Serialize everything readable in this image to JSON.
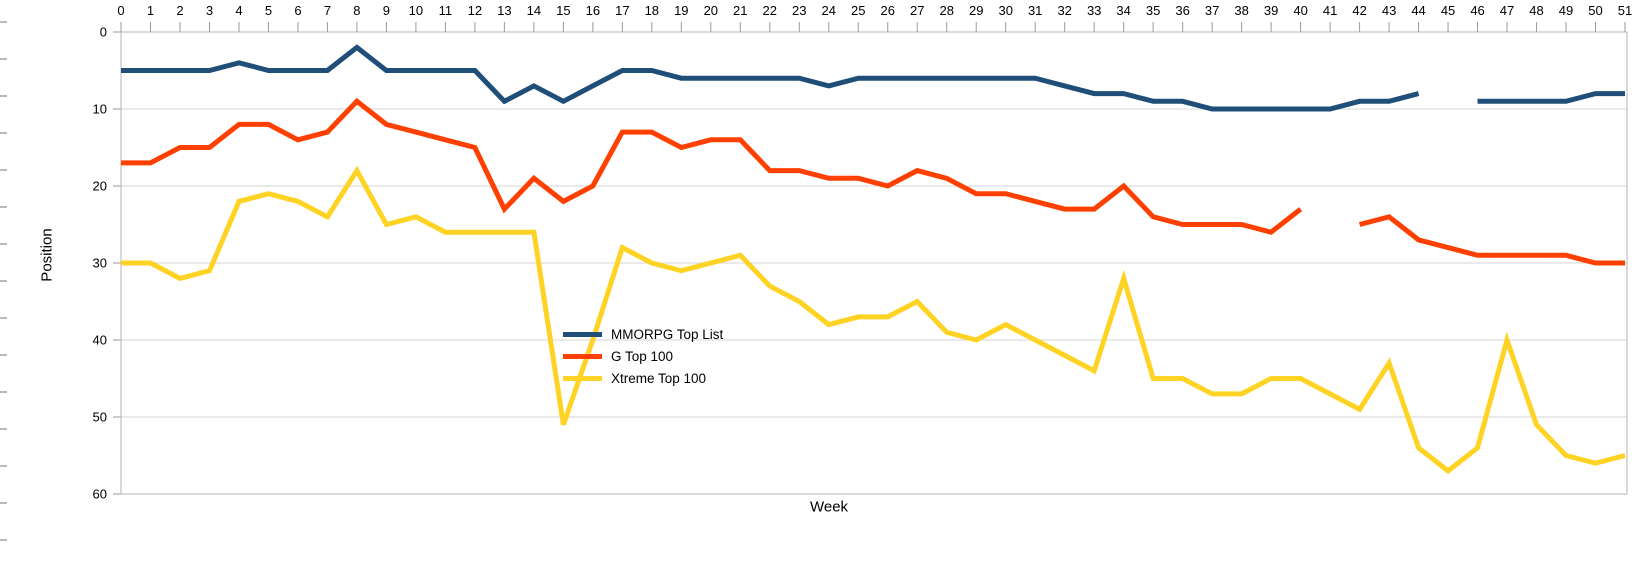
{
  "chart_data": {
    "type": "line",
    "title": "",
    "xlabel": "Week",
    "ylabel": "Position",
    "x": [
      0,
      1,
      2,
      3,
      4,
      5,
      6,
      7,
      8,
      9,
      10,
      11,
      12,
      13,
      14,
      15,
      16,
      17,
      18,
      19,
      20,
      21,
      22,
      23,
      24,
      25,
      26,
      27,
      28,
      29,
      30,
      31,
      32,
      33,
      34,
      35,
      36,
      37,
      38,
      39,
      40,
      41,
      42,
      43,
      44,
      45,
      46,
      47,
      48,
      49,
      50,
      51
    ],
    "y_axis": {
      "min": 0,
      "max": 60,
      "inverted": true,
      "ticks": [
        0,
        10,
        20,
        30,
        40,
        50,
        60
      ]
    },
    "grid": true,
    "legend_position": "inside-center-left",
    "series": [
      {
        "name": "MMORPG Top List",
        "color": "#1F4E79",
        "values": [
          5,
          5,
          5,
          5,
          4,
          5,
          5,
          5,
          2,
          5,
          5,
          5,
          5,
          9,
          7,
          9,
          7,
          5,
          5,
          6,
          6,
          6,
          6,
          6,
          7,
          6,
          6,
          6,
          6,
          6,
          6,
          6,
          7,
          8,
          8,
          9,
          9,
          10,
          10,
          10,
          10,
          10,
          9,
          9,
          8,
          null,
          9,
          9,
          9,
          9,
          8,
          8
        ]
      },
      {
        "name": "G Top 100",
        "color": "#FF4000",
        "values": [
          17,
          17,
          15,
          15,
          12,
          12,
          14,
          13,
          9,
          12,
          13,
          14,
          15,
          23,
          19,
          22,
          20,
          13,
          13,
          15,
          14,
          14,
          18,
          18,
          19,
          19,
          20,
          18,
          19,
          21,
          21,
          22,
          23,
          23,
          20,
          24,
          25,
          25,
          25,
          26,
          23,
          null,
          25,
          24,
          27,
          28,
          29,
          29,
          29,
          29,
          30,
          30
        ]
      },
      {
        "name": "Xtreme Top 100",
        "color": "#FFD324",
        "values": [
          30,
          30,
          32,
          31,
          22,
          21,
          22,
          24,
          18,
          25,
          24,
          26,
          26,
          26,
          26,
          51,
          40,
          28,
          30,
          31,
          30,
          29,
          33,
          35,
          38,
          37,
          37,
          35,
          39,
          40,
          38,
          40,
          42,
          44,
          32,
          45,
          45,
          47,
          47,
          45,
          45,
          47,
          49,
          43,
          54,
          57,
          54,
          40,
          51,
          55,
          56,
          55
        ]
      }
    ]
  },
  "style": {
    "gridline_color": "#d4d4d4",
    "frame_color": "#b5b5b5",
    "tick_color": "#9a9a9a",
    "tick_label_color": "#000000",
    "line_width": 5
  }
}
